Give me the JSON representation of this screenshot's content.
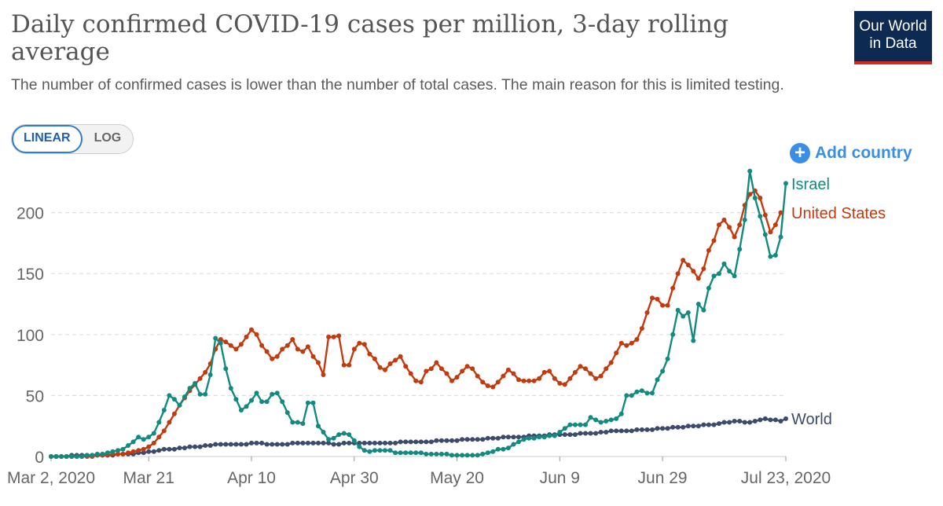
{
  "header": {
    "title": "Daily confirmed COVID-19 cases per million, 3-day rolling average",
    "subtitle": "The number of confirmed cases is lower than the number of total cases. The main reason for this is limited testing.",
    "logo_line1": "Our World",
    "logo_line2": "in Data"
  },
  "controls": {
    "linear_label": "LINEAR",
    "log_label": "LOG",
    "add_country_label": "Add country",
    "add_icon": "plus-circle-icon"
  },
  "colors": {
    "israel": "#138a7f",
    "united_states": "#c23b0f",
    "world": "#3c4a6b",
    "accent": "#3a8ee6",
    "logo_bg": "#0d2b52",
    "logo_stripe": "#d42b21"
  },
  "chart_data": {
    "type": "line",
    "title": "Daily confirmed COVID-19 cases per million, 3-day rolling average",
    "ylim": [
      0,
      230
    ],
    "y_ticks": [
      0,
      50,
      100,
      150,
      200
    ],
    "x_tick_labels": [
      "Mar 2, 2020",
      "Mar 21",
      "Apr 10",
      "Apr 30",
      "May 20",
      "Jun 9",
      "Jun 29",
      "Jul 23, 2020"
    ],
    "x_tick_days": [
      0,
      19,
      39,
      59,
      79,
      99,
      119,
      143
    ],
    "x_start": "2020-03-02",
    "x_end": "2020-07-23",
    "grid": "horizontal dashed",
    "legend": "end-of-line labels",
    "series": [
      {
        "name": "Israel",
        "color_key": "israel",
        "values": [
          0,
          0,
          0,
          0,
          0,
          0,
          0,
          1,
          1,
          2,
          2,
          3,
          4,
          5,
          6,
          9,
          12,
          16,
          14,
          16,
          19,
          28,
          38,
          50,
          47,
          42,
          49,
          56,
          60,
          51,
          51,
          67,
          97,
          93,
          72,
          56,
          47,
          38,
          41,
          46,
          52,
          45,
          45,
          51,
          52,
          45,
          36,
          28,
          28,
          27,
          44,
          44,
          25,
          20,
          14,
          15,
          18,
          19,
          18,
          13,
          8,
          5,
          4,
          5,
          5,
          5,
          5,
          3,
          3,
          3,
          3,
          3,
          3,
          2,
          2,
          2,
          2,
          2,
          1,
          1,
          1,
          1,
          1,
          1,
          2,
          3,
          4,
          6,
          6,
          7,
          10,
          12,
          14,
          15,
          15,
          16,
          16,
          17,
          17,
          20,
          23,
          26,
          26,
          26,
          26,
          32,
          30,
          28,
          29,
          30,
          31,
          35,
          50,
          50,
          53,
          54,
          52,
          52,
          63,
          70,
          80,
          100,
          120,
          115,
          118,
          95,
          125,
          120,
          138,
          148,
          150,
          158,
          152,
          148,
          170,
          194,
          234,
          212,
          197,
          182,
          164,
          165,
          180,
          224
        ]
      },
      {
        "name": "United States",
        "color_key": "united_states",
        "values": [
          0,
          0,
          0,
          0,
          0,
          0,
          0,
          0,
          0,
          1,
          1,
          1,
          2,
          2,
          2,
          3,
          4,
          5,
          6,
          8,
          11,
          16,
          21,
          28,
          35,
          42,
          48,
          54,
          59,
          64,
          69,
          76,
          88,
          96,
          94,
          91,
          88,
          92,
          98,
          104,
          100,
          91,
          86,
          80,
          82,
          88,
          91,
          96,
          88,
          86,
          90,
          82,
          77,
          67,
          98,
          98,
          99,
          75,
          75,
          88,
          93,
          92,
          84,
          80,
          73,
          71,
          76,
          79,
          82,
          74,
          68,
          62,
          61,
          70,
          72,
          77,
          72,
          68,
          62,
          65,
          70,
          74,
          72,
          66,
          61,
          58,
          57,
          61,
          66,
          71,
          68,
          63,
          62,
          62,
          62,
          64,
          69,
          70,
          64,
          60,
          59,
          64,
          69,
          74,
          72,
          68,
          64,
          66,
          72,
          77,
          85,
          93,
          91,
          93,
          96,
          105,
          118,
          130,
          129,
          124,
          124,
          138,
          150,
          161,
          157,
          152,
          146,
          154,
          169,
          177,
          190,
          194,
          188,
          180,
          190,
          206,
          215,
          218,
          212,
          198,
          184,
          190,
          200
        ]
      },
      {
        "name": "World",
        "color_key": "world",
        "values": [
          0,
          0,
          0,
          0,
          1,
          1,
          1,
          1,
          1,
          1,
          1,
          1,
          1,
          2,
          2,
          2,
          2,
          3,
          3,
          4,
          4,
          5,
          6,
          6,
          6,
          7,
          7,
          8,
          8,
          8,
          9,
          9,
          10,
          10,
          10,
          10,
          10,
          10,
          10,
          11,
          11,
          11,
          10,
          10,
          10,
          10,
          10,
          11,
          11,
          11,
          11,
          11,
          11,
          11,
          11,
          10,
          10,
          11,
          11,
          11,
          11,
          11,
          11,
          11,
          11,
          11,
          11,
          11,
          12,
          12,
          12,
          12,
          12,
          12,
          12,
          13,
          13,
          13,
          13,
          13,
          14,
          14,
          14,
          14,
          14,
          15,
          15,
          15,
          16,
          16,
          16,
          16,
          16,
          17,
          17,
          17,
          17,
          18,
          18,
          18,
          18,
          18,
          18,
          19,
          19,
          19,
          19,
          20,
          20,
          21,
          21,
          21,
          21,
          21,
          22,
          22,
          22,
          22,
          23,
          23,
          23,
          24,
          24,
          24,
          25,
          25,
          25,
          26,
          26,
          26,
          27,
          28,
          28,
          29,
          29,
          28,
          28,
          29,
          30,
          31,
          30,
          30,
          29,
          31
        ]
      }
    ]
  }
}
